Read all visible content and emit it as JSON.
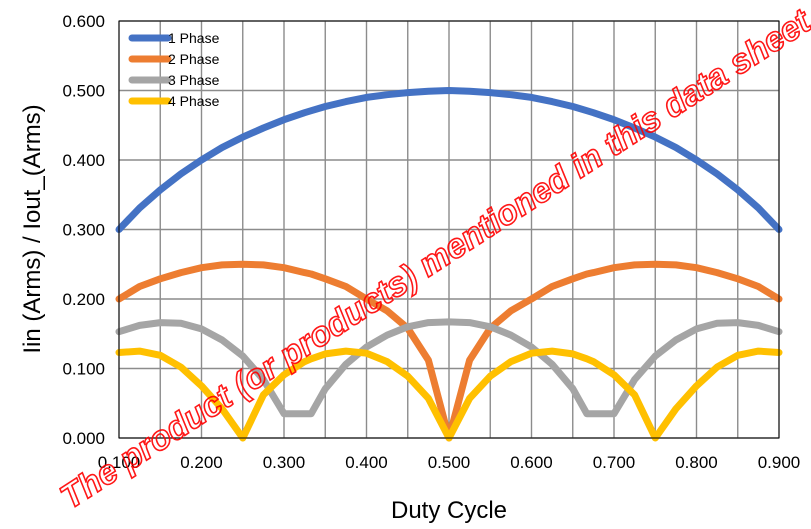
{
  "chart_data": {
    "type": "line",
    "xlabel": "Duty Cycle",
    "ylabel": "Iin (Arms) / Iout_(Arms)",
    "xlim": [
      0.1,
      0.9
    ],
    "ylim": [
      0.0,
      0.6
    ],
    "x_ticks": [
      "0.100",
      "0.200",
      "0.300",
      "0.400",
      "0.500",
      "0.600",
      "0.700",
      "0.800",
      "0.900"
    ],
    "y_ticks": [
      "0.000",
      "0.100",
      "0.200",
      "0.300",
      "0.400",
      "0.500",
      "0.600"
    ],
    "grid": true,
    "legend_position": "top-left",
    "x": [
      0.1,
      0.125,
      0.15,
      0.175,
      0.2,
      0.225,
      0.25,
      0.275,
      0.3,
      0.325,
      0.333,
      0.35,
      0.375,
      0.4,
      0.425,
      0.45,
      0.475,
      0.5,
      0.525,
      0.55,
      0.575,
      0.6,
      0.625,
      0.65,
      0.667,
      0.675,
      0.7,
      0.725,
      0.75,
      0.775,
      0.8,
      0.825,
      0.85,
      0.875,
      0.9
    ],
    "series": [
      {
        "name": "1 Phase",
        "color": "#4472c4",
        "values": [
          0.3,
          0.331,
          0.357,
          0.38,
          0.4,
          0.418,
          0.433,
          0.446,
          0.458,
          0.468,
          0.471,
          0.477,
          0.484,
          0.49,
          0.494,
          0.497,
          0.499,
          0.5,
          0.499,
          0.497,
          0.494,
          0.49,
          0.484,
          0.477,
          0.471,
          0.468,
          0.458,
          0.446,
          0.433,
          0.418,
          0.4,
          0.38,
          0.357,
          0.331,
          0.3
        ]
      },
      {
        "name": "2 Phase",
        "color": "#ed7d31",
        "values": [
          0.2,
          0.218,
          0.229,
          0.238,
          0.245,
          0.249,
          0.25,
          0.249,
          0.245,
          0.238,
          0.236,
          0.229,
          0.218,
          0.2,
          0.183,
          0.158,
          0.112,
          0.0,
          0.112,
          0.158,
          0.183,
          0.2,
          0.218,
          0.229,
          0.236,
          0.238,
          0.245,
          0.249,
          0.25,
          0.249,
          0.245,
          0.238,
          0.229,
          0.218,
          0.2
        ]
      },
      {
        "name": "3 Phase",
        "color": "#a5a5a5",
        "values": [
          0.153,
          0.162,
          0.166,
          0.165,
          0.157,
          0.141,
          0.118,
          0.084,
          0.035,
          0.035,
          0.035,
          0.071,
          0.106,
          0.131,
          0.148,
          0.16,
          0.166,
          0.167,
          0.166,
          0.16,
          0.148,
          0.131,
          0.106,
          0.071,
          0.035,
          0.035,
          0.035,
          0.084,
          0.118,
          0.141,
          0.157,
          0.165,
          0.166,
          0.162,
          0.153
        ]
      },
      {
        "name": "4 Phase",
        "color": "#ffc000",
        "values": [
          0.123,
          0.125,
          0.119,
          0.102,
          0.075,
          0.042,
          0.0,
          0.062,
          0.091,
          0.11,
          0.114,
          0.121,
          0.125,
          0.122,
          0.11,
          0.089,
          0.057,
          0.0,
          0.057,
          0.089,
          0.11,
          0.122,
          0.125,
          0.121,
          0.114,
          0.11,
          0.091,
          0.062,
          0.0,
          0.042,
          0.075,
          0.102,
          0.119,
          0.125,
          0.123
        ]
      }
    ]
  },
  "watermark": {
    "text": "The product (or products) mentioned in this data sheet are no longer being produced and may not be ordered (OBS)",
    "color": "#ff0000"
  }
}
